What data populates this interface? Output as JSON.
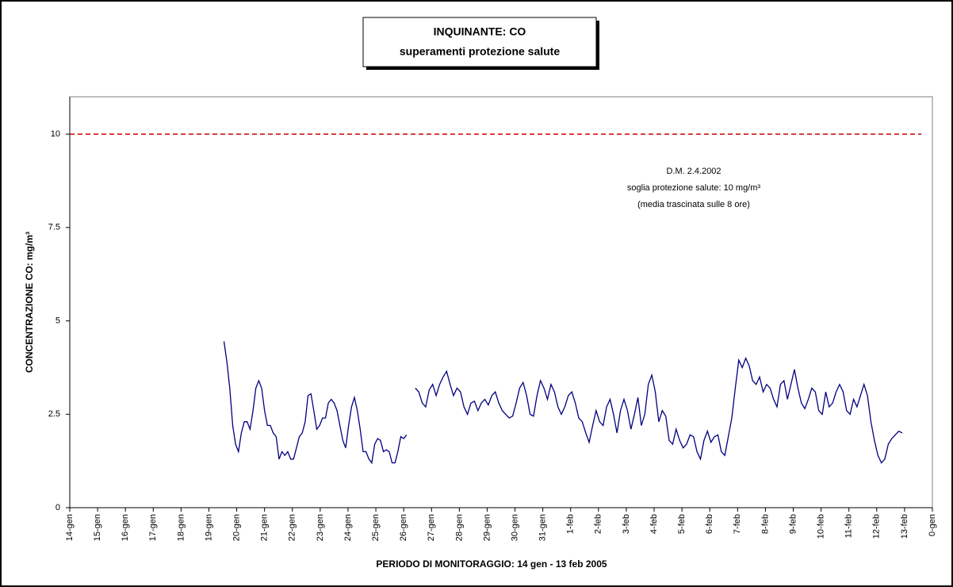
{
  "chart_data": {
    "type": "line",
    "title": "INQUINANTE: CO",
    "subtitle": "superamenti protezione salute",
    "x_label": "PERIODO DI MONITORAGGIO: 14 gen - 13 feb 2005",
    "y_label": "CONCENTRAZIONE CO: mg/m³",
    "annotation": [
      "D.M. 2.4.2002",
      "soglia protezione salute: 10 mg/m³",
      "(media trascinata sulle 8 ore)"
    ],
    "threshold": {
      "value": 10,
      "color": "#cc0000"
    },
    "color": "#000080",
    "xlim": [
      0,
      720
    ],
    "ylim": [
      0,
      11
    ],
    "yticks": [
      0,
      2.5,
      5,
      7.5,
      10
    ],
    "xticks": [
      {
        "value": 0,
        "label": "14-gen"
      },
      {
        "value": 24,
        "label": "15-gen"
      },
      {
        "value": 48,
        "label": "16-gen"
      },
      {
        "value": 72,
        "label": "17-gen"
      },
      {
        "value": 96,
        "label": "18-gen"
      },
      {
        "value": 120,
        "label": "19-gen"
      },
      {
        "value": 144,
        "label": "20-gen"
      },
      {
        "value": 168,
        "label": "21-gen"
      },
      {
        "value": 192,
        "label": "22-gen"
      },
      {
        "value": 216,
        "label": "23-gen"
      },
      {
        "value": 240,
        "label": "24-gen"
      },
      {
        "value": 264,
        "label": "25-gen"
      },
      {
        "value": 288,
        "label": "26-gen"
      },
      {
        "value": 312,
        "label": "27-gen"
      },
      {
        "value": 336,
        "label": "28-gen"
      },
      {
        "value": 360,
        "label": "29-gen"
      },
      {
        "value": 384,
        "label": "30-gen"
      },
      {
        "value": 408,
        "label": "31-gen"
      },
      {
        "value": 432,
        "label": "1-feb"
      },
      {
        "value": 456,
        "label": "2-feb"
      },
      {
        "value": 480,
        "label": "3-feb"
      },
      {
        "value": 504,
        "label": "4-feb"
      },
      {
        "value": 528,
        "label": "5-feb"
      },
      {
        "value": 552,
        "label": "6-feb"
      },
      {
        "value": 576,
        "label": "7-feb"
      },
      {
        "value": 600,
        "label": "8-feb"
      },
      {
        "value": 624,
        "label": "9-feb"
      },
      {
        "value": 648,
        "label": "10-feb"
      },
      {
        "value": 672,
        "label": "11-feb"
      },
      {
        "value": 696,
        "label": "12-feb"
      },
      {
        "value": 720,
        "label": "13-feb"
      },
      {
        "value": 744,
        "label": "0-gen"
      }
    ],
    "x": [
      133,
      135.5,
      138,
      140.5,
      143,
      145.5,
      148,
      150.5,
      153,
      155.5,
      158,
      160.5,
      163,
      165.5,
      168,
      170.5,
      173,
      175.5,
      178,
      180.5,
      183,
      185.5,
      188,
      190.5,
      193,
      195.5,
      198,
      200.5,
      203,
      205.5,
      208,
      210.5,
      213,
      215.5,
      218,
      220.5,
      223,
      225.5,
      228,
      230.5,
      233,
      235.5,
      238,
      240.5,
      243,
      245.5,
      248,
      250.5,
      253,
      255.5,
      258,
      260.5,
      263,
      265.5,
      268,
      270.5,
      273,
      275.5,
      278,
      280.5,
      283,
      285.5,
      288,
      290.5,
      294,
      298,
      301,
      304,
      307,
      310,
      313,
      316,
      319,
      322,
      325,
      328,
      331,
      334,
      337,
      340,
      343,
      346,
      349,
      352,
      355,
      358,
      361,
      364,
      367,
      370,
      373,
      376,
      379,
      382,
      385,
      388,
      391,
      394,
      397,
      400,
      403,
      406,
      409,
      412,
      415,
      418,
      421,
      424,
      427,
      430,
      433,
      436,
      439,
      442,
      445,
      448,
      451,
      454,
      457,
      460,
      463,
      466,
      469,
      472,
      475,
      478,
      481,
      484,
      487,
      490,
      493,
      496,
      499,
      502,
      505,
      508,
      511,
      514,
      517,
      520,
      523,
      526,
      529,
      532,
      535,
      538,
      541,
      544,
      547,
      550,
      553,
      556,
      559,
      562,
      565,
      568,
      571,
      574,
      577,
      580,
      583,
      586,
      589,
      592,
      595,
      598,
      601,
      604,
      607,
      610,
      613,
      616,
      619,
      622,
      625,
      628,
      631,
      634,
      637,
      640,
      643,
      646,
      649,
      652,
      655,
      658,
      661,
      664,
      667,
      670,
      673,
      676,
      679,
      682,
      685,
      688,
      691,
      694,
      697,
      700,
      703,
      706,
      709,
      712,
      715,
      718
    ],
    "values": [
      4.45,
      3.9,
      3.2,
      2.2,
      1.7,
      1.5,
      2.0,
      2.3,
      2.3,
      2.1,
      2.6,
      3.2,
      3.4,
      3.2,
      2.6,
      2.2,
      2.2,
      2.0,
      1.9,
      1.3,
      1.5,
      1.4,
      1.5,
      1.3,
      1.3,
      1.6,
      1.9,
      2.0,
      2.3,
      3.0,
      3.05,
      2.6,
      2.1,
      2.2,
      2.4,
      2.4,
      2.8,
      2.9,
      2.8,
      2.6,
      2.2,
      1.8,
      1.6,
      2.2,
      2.7,
      2.95,
      2.6,
      2.1,
      1.5,
      1.5,
      1.3,
      1.2,
      1.7,
      1.85,
      1.8,
      1.5,
      1.55,
      1.5,
      1.2,
      1.2,
      1.5,
      1.9,
      1.85,
      1.95,
      null,
      3.2,
      3.1,
      2.8,
      2.7,
      3.15,
      3.3,
      3.0,
      3.3,
      3.5,
      3.65,
      3.3,
      3.0,
      3.2,
      3.1,
      2.7,
      2.5,
      2.8,
      2.85,
      2.6,
      2.8,
      2.9,
      2.75,
      3.0,
      3.1,
      2.8,
      2.6,
      2.5,
      2.4,
      2.45,
      2.8,
      3.2,
      3.35,
      3.0,
      2.5,
      2.45,
      3.0,
      3.4,
      3.2,
      2.9,
      3.3,
      3.1,
      2.7,
      2.5,
      2.7,
      3.0,
      3.1,
      2.8,
      2.4,
      2.3,
      2.0,
      1.75,
      2.2,
      2.6,
      2.3,
      2.2,
      2.7,
      2.9,
      2.5,
      2.0,
      2.6,
      2.9,
      2.6,
      2.1,
      2.5,
      2.95,
      2.2,
      2.5,
      3.3,
      3.55,
      3.1,
      2.3,
      2.6,
      2.45,
      1.8,
      1.7,
      2.1,
      1.8,
      1.6,
      1.7,
      1.95,
      1.9,
      1.5,
      1.3,
      1.8,
      2.05,
      1.75,
      1.9,
      1.95,
      1.5,
      1.4,
      1.9,
      2.4,
      3.2,
      3.95,
      3.75,
      4.0,
      3.8,
      3.4,
      3.3,
      3.5,
      3.1,
      3.3,
      3.2,
      2.9,
      2.7,
      3.3,
      3.4,
      2.9,
      3.3,
      3.7,
      3.2,
      2.8,
      2.65,
      2.9,
      3.2,
      3.1,
      2.6,
      2.5,
      3.1,
      2.7,
      2.8,
      3.1,
      3.3,
      3.1,
      2.6,
      2.5,
      2.9,
      2.7,
      3.0,
      3.3,
      3.0,
      2.3,
      1.8,
      1.4,
      1.2,
      1.3,
      1.7,
      1.85,
      1.95,
      2.05,
      2.0
    ]
  }
}
